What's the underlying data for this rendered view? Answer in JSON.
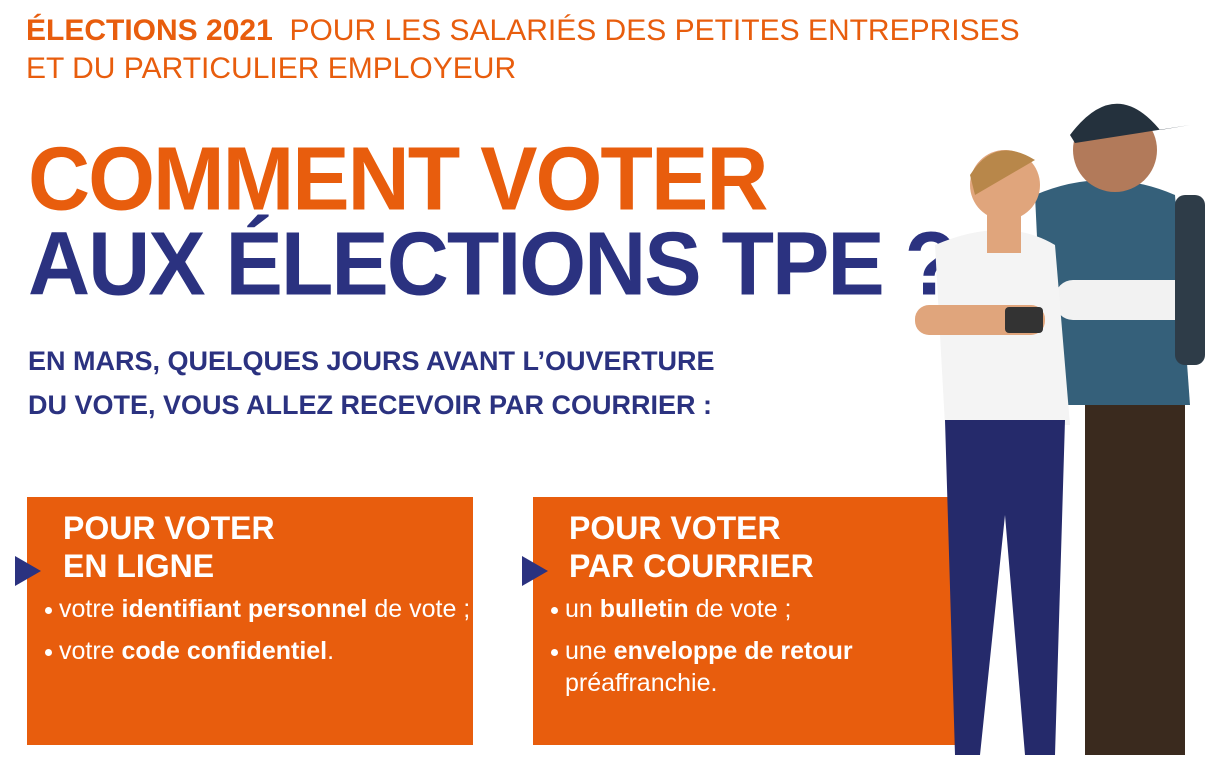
{
  "header": {
    "highlight": "ÉLECTIONS 2021",
    "line1": "POUR LES SALARIÉS DES PETITES ENTREPRISES",
    "line2": "ET DU PARTICULIER EMPLOYEUR"
  },
  "title": {
    "line1": "COMMENT VOTER",
    "line2": "AUX ÉLECTIONS TPE ?"
  },
  "subtitle": {
    "line1": "EN MARS, QUELQUES JOURS AVANT L’OUVERTURE",
    "line2": "DU VOTE, VOUS ALLEZ RECEVOIR PAR COURRIER :"
  },
  "boxes": [
    {
      "heading": [
        "POUR VOTER",
        "EN LIGNE"
      ],
      "bullets": [
        [
          {
            "text": "votre ",
            "bold": false
          },
          {
            "text": "identifiant personnel",
            "bold": true
          },
          {
            "text": " de vote ;",
            "bold": false
          }
        ],
        [
          {
            "text": "votre ",
            "bold": false
          },
          {
            "text": "code confidentiel",
            "bold": true
          },
          {
            "text": ".",
            "bold": false
          }
        ]
      ]
    },
    {
      "heading": [
        "POUR VOTER",
        "PAR COURRIER"
      ],
      "bullets": [
        [
          {
            "text": "un ",
            "bold": false
          },
          {
            "text": "bulletin",
            "bold": true
          },
          {
            "text": " de vote ;",
            "bold": false
          }
        ],
        [
          {
            "text": "une ",
            "bold": false
          },
          {
            "text": "enveloppe de retour",
            "bold": true
          },
          {
            "text": " préaffranchie.",
            "bold": false
          }
        ]
      ]
    }
  ]
}
